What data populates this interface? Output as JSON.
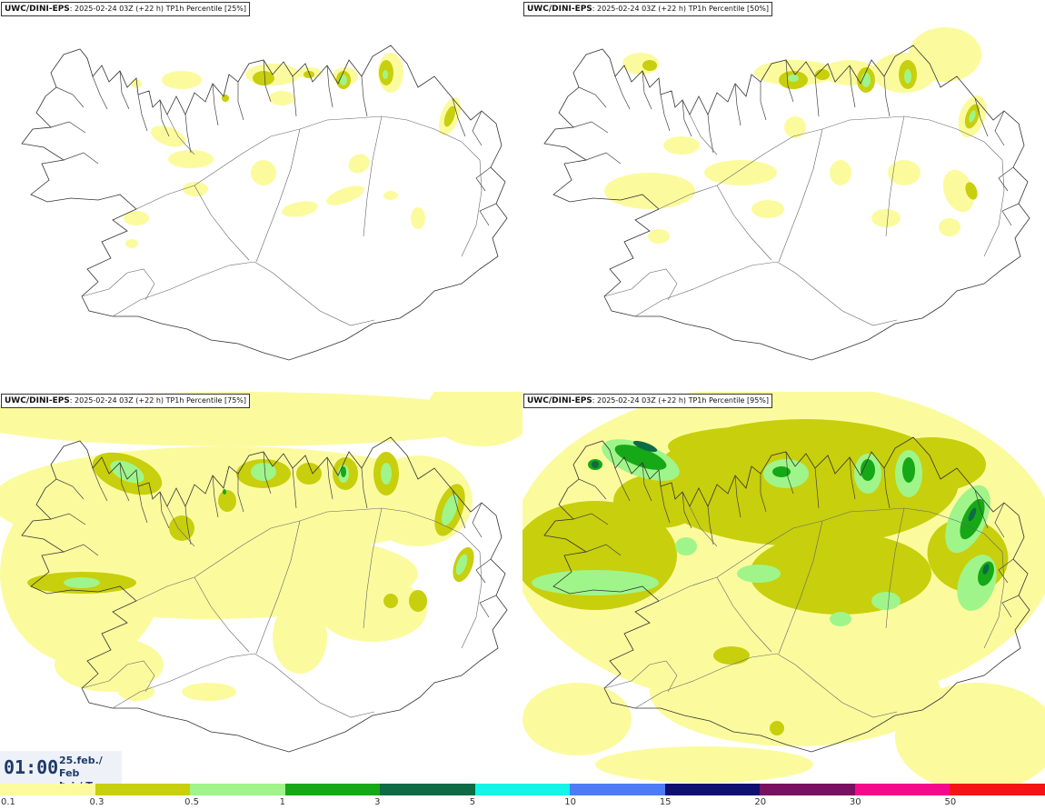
{
  "panels": [
    {
      "model": "UWC/DINI-EPS",
      "run": ": 2025-02-24 03Z (+22 h)",
      "field": "TP1h Percentile [25%]"
    },
    {
      "model": "UWC/DINI-EPS",
      "run": ": 2025-02-24 03Z (+22 h)",
      "field": "TP1h Percentile [50%]"
    },
    {
      "model": "UWC/DINI-EPS",
      "run": ": 2025-02-24 03Z (+22 h)",
      "field": "TP1h Percentile [75%]"
    },
    {
      "model": "UWC/DINI-EPS",
      "run": ": 2025-02-24 03Z (+22 h)",
      "field": "TP1h Percentile [95%]"
    }
  ],
  "valid_time": {
    "time": "01:00",
    "date": "25.feb./ Feb",
    "weekday": "Þri./ Tue"
  },
  "colorbar": {
    "labels": [
      "0.1",
      "0.3",
      "0.5",
      "1",
      "3",
      "5",
      "10",
      "15",
      "20",
      "30",
      "50"
    ],
    "colors": [
      "#fbfb9e",
      "#c8cf0c",
      "#9ff58a",
      "#16a816",
      "#0d6b45",
      "#14f5e8",
      "#4d7cf5",
      "#101070",
      "#7a1060",
      "#f50a8c",
      "#f51414"
    ]
  }
}
